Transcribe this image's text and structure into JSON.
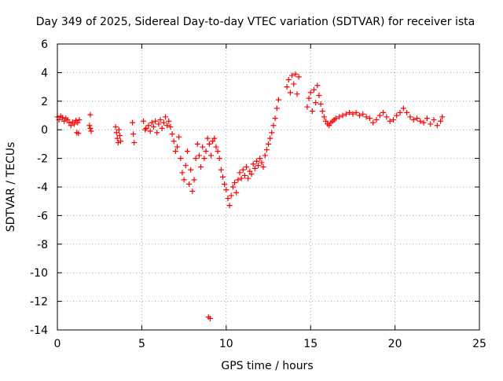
{
  "chart_data": {
    "type": "scatter",
    "title": "Day 349 of 2025, Sidereal Day-to-day VTEC variation (SDTVAR) for receiver ista",
    "xlabel": "GPS time / hours",
    "ylabel": "SDTVAR / TECUs",
    "xlim": [
      0,
      25
    ],
    "ylim": [
      -14,
      6
    ],
    "xticks": [
      0,
      5,
      10,
      15,
      20,
      25
    ],
    "yticks": [
      6,
      4,
      2,
      0,
      -2,
      -4,
      -6,
      -8,
      -10,
      -12,
      -14
    ],
    "grid": true,
    "marker": "+",
    "series": [
      {
        "name": "SDTVAR",
        "color": "#ff0000",
        "points": [
          [
            0.0,
            0.9
          ],
          [
            0.1,
            0.7
          ],
          [
            0.2,
            0.95
          ],
          [
            0.3,
            0.85
          ],
          [
            0.4,
            0.6
          ],
          [
            0.5,
            0.8
          ],
          [
            0.6,
            0.7
          ],
          [
            0.7,
            0.5
          ],
          [
            0.8,
            0.3
          ],
          [
            0.9,
            0.55
          ],
          [
            1.0,
            0.4
          ],
          [
            1.1,
            0.65
          ],
          [
            1.2,
            0.5
          ],
          [
            1.3,
            0.7
          ],
          [
            1.15,
            -0.2
          ],
          [
            1.25,
            -0.25
          ],
          [
            1.95,
            1.05
          ],
          [
            1.9,
            0.3
          ],
          [
            1.95,
            0.1
          ],
          [
            2.0,
            -0.1
          ],
          [
            3.45,
            0.2
          ],
          [
            3.5,
            -0.2
          ],
          [
            3.55,
            -0.6
          ],
          [
            3.6,
            -0.9
          ],
          [
            3.65,
            0.0
          ],
          [
            3.7,
            -0.4
          ],
          [
            3.75,
            -0.8
          ],
          [
            4.45,
            0.5
          ],
          [
            4.5,
            -0.3
          ],
          [
            4.55,
            -0.9
          ],
          [
            5.1,
            0.6
          ],
          [
            5.2,
            0.0
          ],
          [
            5.25,
            0.1
          ],
          [
            5.4,
            0.3
          ],
          [
            5.5,
            -0.1
          ],
          [
            5.6,
            0.5
          ],
          [
            5.7,
            0.2
          ],
          [
            5.8,
            0.6
          ],
          [
            5.9,
            -0.2
          ],
          [
            6.0,
            0.4
          ],
          [
            6.1,
            0.7
          ],
          [
            6.2,
            0.1
          ],
          [
            6.3,
            0.5
          ],
          [
            6.4,
            0.9
          ],
          [
            6.5,
            0.3
          ],
          [
            6.6,
            0.6
          ],
          [
            6.7,
            0.2
          ],
          [
            6.8,
            -0.3
          ],
          [
            6.9,
            -0.8
          ],
          [
            7.0,
            -1.5
          ],
          [
            7.1,
            -1.2
          ],
          [
            7.2,
            -0.5
          ],
          [
            7.3,
            -2.0
          ],
          [
            7.4,
            -3.0
          ],
          [
            7.5,
            -3.5
          ],
          [
            7.6,
            -2.5
          ],
          [
            7.7,
            -1.5
          ],
          [
            7.8,
            -3.8
          ],
          [
            7.9,
            -2.8
          ],
          [
            8.0,
            -4.3
          ],
          [
            8.1,
            -3.5
          ],
          [
            8.2,
            -2.0
          ],
          [
            8.3,
            -1.0
          ],
          [
            8.4,
            -1.8
          ],
          [
            8.5,
            -2.6
          ],
          [
            8.6,
            -1.2
          ],
          [
            8.7,
            -2.0
          ],
          [
            8.8,
            -1.5
          ],
          [
            8.9,
            -0.6
          ],
          [
            9.0,
            -1.0
          ],
          [
            9.1,
            -1.8
          ],
          [
            9.2,
            -0.8
          ],
          [
            9.3,
            -0.6
          ],
          [
            9.4,
            -1.2
          ],
          [
            9.5,
            -1.5
          ],
          [
            9.6,
            -2.0
          ],
          [
            9.7,
            -2.8
          ],
          [
            9.8,
            -3.3
          ],
          [
            9.9,
            -3.8
          ],
          [
            10.0,
            -4.2
          ],
          [
            10.1,
            -4.8
          ],
          [
            10.2,
            -5.3
          ],
          [
            10.3,
            -4.6
          ],
          [
            10.4,
            -4.0
          ],
          [
            10.5,
            -3.7
          ],
          [
            10.6,
            -4.4
          ],
          [
            10.7,
            -3.5
          ],
          [
            10.8,
            -3.0
          ],
          [
            10.9,
            -3.4
          ],
          [
            11.0,
            -2.8
          ],
          [
            11.1,
            -3.2
          ],
          [
            11.2,
            -2.6
          ],
          [
            11.3,
            -3.4
          ],
          [
            11.4,
            -2.9
          ],
          [
            11.5,
            -3.1
          ],
          [
            11.6,
            -2.4
          ],
          [
            11.7,
            -2.7
          ],
          [
            11.8,
            -2.2
          ],
          [
            11.9,
            -2.5
          ],
          [
            12.0,
            -2.0
          ],
          [
            12.1,
            -2.3
          ],
          [
            12.2,
            -2.6
          ],
          [
            12.3,
            -1.8
          ],
          [
            12.4,
            -1.4
          ],
          [
            12.5,
            -1.0
          ],
          [
            12.6,
            -0.6
          ],
          [
            12.7,
            -0.2
          ],
          [
            12.8,
            0.3
          ],
          [
            12.9,
            0.8
          ],
          [
            13.0,
            1.5
          ],
          [
            13.1,
            2.1
          ],
          [
            13.6,
            3.0
          ],
          [
            13.7,
            3.5
          ],
          [
            13.8,
            2.6
          ],
          [
            13.9,
            3.8
          ],
          [
            14.0,
            3.2
          ],
          [
            14.1,
            3.9
          ],
          [
            14.2,
            2.5
          ],
          [
            14.3,
            3.7
          ],
          [
            14.8,
            1.6
          ],
          [
            14.9,
            2.2
          ],
          [
            15.0,
            2.6
          ],
          [
            15.1,
            1.3
          ],
          [
            15.2,
            2.8
          ],
          [
            15.3,
            1.9
          ],
          [
            15.4,
            3.1
          ],
          [
            15.5,
            2.4
          ],
          [
            15.6,
            1.8
          ],
          [
            15.7,
            1.3
          ],
          [
            15.8,
            0.9
          ],
          [
            15.9,
            0.6
          ],
          [
            16.0,
            0.4
          ],
          [
            16.1,
            0.3
          ],
          [
            16.2,
            0.5
          ],
          [
            16.3,
            0.6
          ],
          [
            16.4,
            0.7
          ],
          [
            16.5,
            0.8
          ],
          [
            16.7,
            0.9
          ],
          [
            16.9,
            1.0
          ],
          [
            17.1,
            1.1
          ],
          [
            17.3,
            1.2
          ],
          [
            17.5,
            1.1
          ],
          [
            17.7,
            1.2
          ],
          [
            17.9,
            1.0
          ],
          [
            18.1,
            1.1
          ],
          [
            18.3,
            0.9
          ],
          [
            18.5,
            0.8
          ],
          [
            18.7,
            0.5
          ],
          [
            18.9,
            0.7
          ],
          [
            19.1,
            1.0
          ],
          [
            19.3,
            1.2
          ],
          [
            19.5,
            0.9
          ],
          [
            19.7,
            0.6
          ],
          [
            19.9,
            0.7
          ],
          [
            20.1,
            1.0
          ],
          [
            20.3,
            1.2
          ],
          [
            20.5,
            1.5
          ],
          [
            20.7,
            1.2
          ],
          [
            20.9,
            0.9
          ],
          [
            21.1,
            0.7
          ],
          [
            21.3,
            0.8
          ],
          [
            21.5,
            0.6
          ],
          [
            21.7,
            0.5
          ],
          [
            21.9,
            0.8
          ],
          [
            22.1,
            0.4
          ],
          [
            22.3,
            0.7
          ],
          [
            22.5,
            0.3
          ],
          [
            22.7,
            0.6
          ],
          [
            22.8,
            0.9
          ],
          [
            8.95,
            -13.1
          ],
          [
            9.05,
            -13.2
          ]
        ]
      }
    ]
  }
}
